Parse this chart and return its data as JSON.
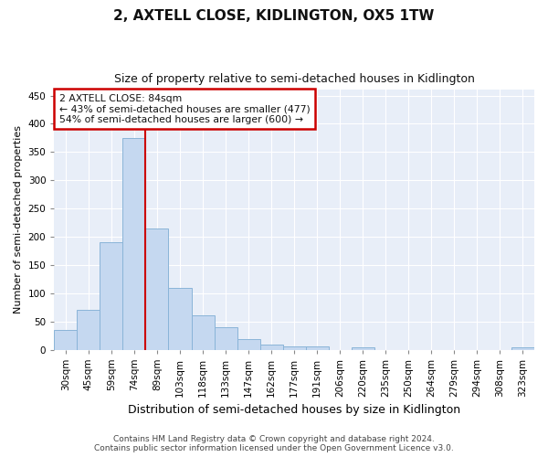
{
  "title": "2, AXTELL CLOSE, KIDLINGTON, OX5 1TW",
  "subtitle": "Size of property relative to semi-detached houses in Kidlington",
  "xlabel": "Distribution of semi-detached houses by size in Kidlington",
  "ylabel": "Number of semi-detached properties",
  "categories": [
    "30sqm",
    "45sqm",
    "59sqm",
    "74sqm",
    "89sqm",
    "103sqm",
    "118sqm",
    "133sqm",
    "147sqm",
    "162sqm",
    "177sqm",
    "191sqm",
    "206sqm",
    "220sqm",
    "235sqm",
    "250sqm",
    "264sqm",
    "279sqm",
    "294sqm",
    "308sqm",
    "323sqm"
  ],
  "values": [
    35,
    70,
    190,
    375,
    215,
    110,
    60,
    40,
    18,
    9,
    5,
    5,
    0,
    4,
    0,
    0,
    0,
    0,
    0,
    0,
    4
  ],
  "bar_color": "#c5d8f0",
  "bar_edge_color": "#8ab4d8",
  "vline_x_idx": 3.5,
  "annotation_text_line1": "2 AXTELL CLOSE: 84sqm",
  "annotation_text_line2": "← 43% of semi-detached houses are smaller (477)",
  "annotation_text_line3": "54% of semi-detached houses are larger (600) →",
  "ylim": [
    0,
    460
  ],
  "yticks": [
    0,
    50,
    100,
    150,
    200,
    250,
    300,
    350,
    400,
    450
  ],
  "footer_line1": "Contains HM Land Registry data © Crown copyright and database right 2024.",
  "footer_line2": "Contains public sector information licensed under the Open Government Licence v3.0.",
  "fig_bg_color": "#ffffff",
  "plot_bg_color": "#e8eef8",
  "grid_color": "#ffffff",
  "title_fontsize": 11,
  "subtitle_fontsize": 9,
  "annotation_box_facecolor": "#ffffff",
  "annotation_box_edgecolor": "#cc0000",
  "vline_color": "#cc0000",
  "ylabel_fontsize": 8,
  "xlabel_fontsize": 9,
  "tick_fontsize": 7.5,
  "footer_fontsize": 6.5
}
